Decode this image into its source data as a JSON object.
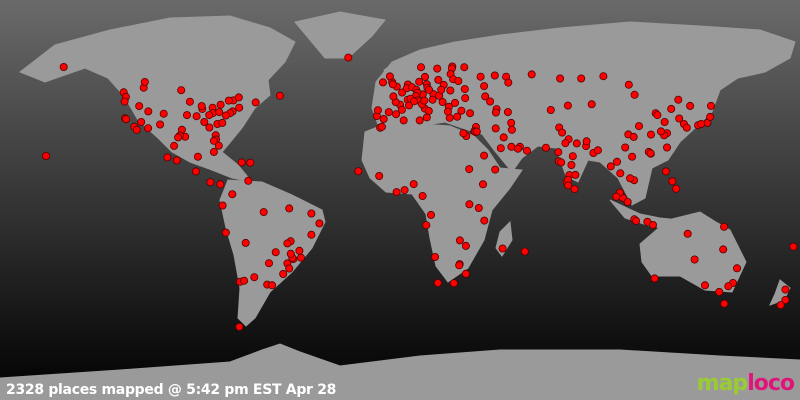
{
  "caption": "2328 places mapped @ 5:42 pm EST Apr 28",
  "logo": {
    "text_part1": "map",
    "text_part2": "loco",
    "color1": "#99cc33",
    "color2": "#e0157a"
  },
  "colors": {
    "land": "#9a9a9a",
    "marker": "#ff0000",
    "marker_outline": "#550000",
    "ocean_top": "#6a6a6a",
    "ocean_bottom": "#000000"
  },
  "markers": [
    [
      60,
      -150
    ],
    [
      49,
      -123
    ],
    [
      47,
      -122
    ],
    [
      45,
      -122.6
    ],
    [
      43,
      -116
    ],
    [
      40.7,
      -111.9
    ],
    [
      37.7,
      -122.4
    ],
    [
      37.3,
      -121.9
    ],
    [
      34,
      -118.2
    ],
    [
      32.7,
      -117.1
    ],
    [
      33.4,
      -112
    ],
    [
      36.1,
      -115.1
    ],
    [
      39.7,
      -105
    ],
    [
      35,
      -106.6
    ],
    [
      32.7,
      -96.8
    ],
    [
      29.7,
      -95.3
    ],
    [
      30.2,
      -97.7
    ],
    [
      29.4,
      -98.5
    ],
    [
      41.8,
      -87.6
    ],
    [
      42.3,
      -83
    ],
    [
      39.9,
      -82.9
    ],
    [
      39.1,
      -84.5
    ],
    [
      38.6,
      -90.2
    ],
    [
      39.1,
      -94.5
    ],
    [
      44.9,
      -93.2
    ],
    [
      43,
      -87.9
    ],
    [
      40.4,
      -80
    ],
    [
      40.7,
      -74
    ],
    [
      42.3,
      -71
    ],
    [
      39.9,
      -75.1
    ],
    [
      38.9,
      -77
    ],
    [
      35.2,
      -80.8
    ],
    [
      33.7,
      -84.4
    ],
    [
      35.7,
      -78.6
    ],
    [
      36.1,
      -86.7
    ],
    [
      30.3,
      -81.6
    ],
    [
      28.5,
      -81.4
    ],
    [
      25.8,
      -80.2
    ],
    [
      27.9,
      -82.4
    ],
    [
      43.6,
      -79.4
    ],
    [
      45.5,
      -73.6
    ],
    [
      46.8,
      -71.2
    ],
    [
      45.4,
      -75.7
    ],
    [
      51,
      -114
    ],
    [
      53.5,
      -113.5
    ],
    [
      49.9,
      -97.1
    ],
    [
      44.6,
      -63.6
    ],
    [
      47.5,
      -52.7
    ],
    [
      19.4,
      -99.1
    ],
    [
      20.7,
      -103.3
    ],
    [
      25.7,
      -100.3
    ],
    [
      21,
      -89.6
    ],
    [
      14.6,
      -90.5
    ],
    [
      9.9,
      -84
    ],
    [
      9,
      -79.5
    ],
    [
      18.5,
      -69.9
    ],
    [
      18.4,
      -66
    ],
    [
      23.1,
      -82.4
    ],
    [
      10.5,
      -66.9
    ],
    [
      4.7,
      -74.1
    ],
    [
      -0.2,
      -78.5
    ],
    [
      -12,
      -77
    ],
    [
      -16.5,
      -68.1
    ],
    [
      -33.4,
      -70.6
    ],
    [
      -34.6,
      -58.4
    ],
    [
      -31.4,
      -64.2
    ],
    [
      -32.9,
      -68.8
    ],
    [
      -34.9,
      -56.2
    ],
    [
      -25.3,
      -57.6
    ],
    [
      -23.5,
      -46.6
    ],
    [
      -22.9,
      -43.2
    ],
    [
      -19.9,
      -43.9
    ],
    [
      -25.4,
      -49.3
    ],
    [
      -30,
      -51.2
    ],
    [
      -27.6,
      -48.5
    ],
    [
      -15.8,
      -47.9
    ],
    [
      -16.7,
      -49.3
    ],
    [
      -12.9,
      -38.5
    ],
    [
      -8,
      -34.9
    ],
    [
      -3.7,
      -38.5
    ],
    [
      -1.5,
      -48.5
    ],
    [
      -3.1,
      -60
    ],
    [
      -20.5,
      -54.6
    ],
    [
      -22.9,
      -47.1
    ],
    [
      -21.2,
      -47.8
    ],
    [
      -53,
      -70.9
    ],
    [
      64.1,
      -21.9
    ],
    [
      51.5,
      -0.1
    ],
    [
      53.5,
      -2.2
    ],
    [
      55.9,
      -3.2
    ],
    [
      53.3,
      -6.3
    ],
    [
      52.5,
      -1.9
    ],
    [
      48.9,
      2.3
    ],
    [
      45.8,
      4.8
    ],
    [
      43.3,
      5.4
    ],
    [
      43.6,
      1.4
    ],
    [
      44.8,
      -0.6
    ],
    [
      47.2,
      -1.6
    ],
    [
      40.4,
      -3.7
    ],
    [
      41.4,
      2.2
    ],
    [
      39.5,
      -0.4
    ],
    [
      37.4,
      -6
    ],
    [
      38.7,
      -9.1
    ],
    [
      41.2,
      -8.6
    ],
    [
      52.4,
      4.9
    ],
    [
      50.8,
      4.4
    ],
    [
      51.2,
      6.8
    ],
    [
      50.1,
      8.7
    ],
    [
      48.1,
      11.6
    ],
    [
      52.5,
      13.4
    ],
    [
      53.6,
      10
    ],
    [
      51,
      13.7
    ],
    [
      48.8,
      9.2
    ],
    [
      47.4,
      8.5
    ],
    [
      46.2,
      6.1
    ],
    [
      45.5,
      9.2
    ],
    [
      45.1,
      7.7
    ],
    [
      41.9,
      12.5
    ],
    [
      40.9,
      14.3
    ],
    [
      43.8,
      11.3
    ],
    [
      45.4,
      12.3
    ],
    [
      38.1,
      13.4
    ],
    [
      48.2,
      16.4
    ],
    [
      50.1,
      14.4
    ],
    [
      47.5,
      19
    ],
    [
      52.2,
      21
    ],
    [
      50.1,
      19.9
    ],
    [
      54.4,
      18.6
    ],
    [
      44.4,
      26.1
    ],
    [
      42.7,
      23.3
    ],
    [
      44.8,
      20.5
    ],
    [
      45.8,
      16
    ],
    [
      37.9,
      23.7
    ],
    [
      40.6,
      22.9
    ],
    [
      41,
      29
    ],
    [
      39.9,
      32.9
    ],
    [
      38.4,
      27.1
    ],
    [
      55.7,
      12.6
    ],
    [
      59.3,
      18.1
    ],
    [
      59.9,
      10.8
    ],
    [
      60.2,
      24.9
    ],
    [
      59.4,
      24.7
    ],
    [
      56.9,
      24.1
    ],
    [
      54.7,
      25.3
    ],
    [
      53.9,
      27.6
    ],
    [
      50.4,
      30.5
    ],
    [
      49.8,
      24
    ],
    [
      46.5,
      30.7
    ],
    [
      55.8,
      37.6
    ],
    [
      59.9,
      30.3
    ],
    [
      56.3,
      44
    ],
    [
      55.8,
      49.1
    ],
    [
      53.2,
      50.1
    ],
    [
      51.7,
      39.2
    ],
    [
      47.2,
      39.7
    ],
    [
      45,
      41.9
    ],
    [
      56.8,
      60.6
    ],
    [
      55,
      73.4
    ],
    [
      55,
      82.9
    ],
    [
      56,
      92.9
    ],
    [
      52.3,
      104.3
    ],
    [
      43.2,
      76.9
    ],
    [
      41.3,
      69.2
    ],
    [
      40.4,
      49.9
    ],
    [
      41.7,
      44.8
    ],
    [
      40.2,
      44.5
    ],
    [
      35.7,
      51.4
    ],
    [
      32.7,
      51.7
    ],
    [
      33.3,
      44.4
    ],
    [
      33.9,
      35.5
    ],
    [
      32.1,
      34.8
    ],
    [
      31.8,
      35.2
    ],
    [
      31.9,
      35.9
    ],
    [
      30,
      31.2
    ],
    [
      31.2,
      29.9
    ],
    [
      24.7,
      46.7
    ],
    [
      21.5,
      39.2
    ],
    [
      25.3,
      55.3
    ],
    [
      24.5,
      54.4
    ],
    [
      25.3,
      51.5
    ],
    [
      29.4,
      48
    ],
    [
      23.6,
      58.5
    ],
    [
      15.4,
      44.2
    ],
    [
      33.7,
      73
    ],
    [
      31.5,
      74.3
    ],
    [
      24.9,
      67
    ],
    [
      28.6,
      77.2
    ],
    [
      26.9,
      75.8
    ],
    [
      26.8,
      80.9
    ],
    [
      22.6,
      88.4
    ],
    [
      19,
      72.8
    ],
    [
      18.5,
      73.9
    ],
    [
      23,
      72.6
    ],
    [
      17.4,
      78.5
    ],
    [
      13,
      77.6
    ],
    [
      13.1,
      80.3
    ],
    [
      10,
      76.3
    ],
    [
      11,
      77
    ],
    [
      8.5,
      77
    ],
    [
      21.2,
      79.1
    ],
    [
      25.6,
      85.1
    ],
    [
      27.7,
      85.3
    ],
    [
      23.8,
      90.4
    ],
    [
      6.9,
      79.9
    ],
    [
      16.8,
      96.2
    ],
    [
      13.8,
      100.5
    ],
    [
      18.8,
      99
    ],
    [
      21,
      105.8
    ],
    [
      10.8,
      106.7
    ],
    [
      11.6,
      104.9
    ],
    [
      3.1,
      101.7
    ],
    [
      1.3,
      103.8
    ],
    [
      5.4,
      100.3
    ],
    [
      -6.2,
      106.8
    ],
    [
      -6.9,
      107.6
    ],
    [
      -7.3,
      112.7
    ],
    [
      -8.7,
      115.2
    ],
    [
      3.6,
      98.7
    ],
    [
      14.6,
      121
    ],
    [
      10.3,
      123.9
    ],
    [
      7.1,
      125.6
    ],
    [
      22.3,
      114.2
    ],
    [
      23.1,
      113.3
    ],
    [
      22.5,
      114.1
    ],
    [
      25,
      121.5
    ],
    [
      31.2,
      121.5
    ],
    [
      30.3,
      120.2
    ],
    [
      32,
      118.8
    ],
    [
      39.9,
      116.4
    ],
    [
      39.1,
      117.2
    ],
    [
      36.1,
      120.4
    ],
    [
      30.6,
      114.3
    ],
    [
      30.7,
      104.1
    ],
    [
      29.6,
      106.5
    ],
    [
      34.3,
      108.9
    ],
    [
      25,
      102.7
    ],
    [
      41.8,
      123.4
    ],
    [
      45.8,
      126.6
    ],
    [
      43.8,
      87.6
    ],
    [
      47.9,
      106.9
    ],
    [
      37.6,
      127
    ],
    [
      35.2,
      129.1
    ],
    [
      35.7,
      139.7
    ],
    [
      34.7,
      135.5
    ],
    [
      35.2,
      136.9
    ],
    [
      43.1,
      141.3
    ],
    [
      33.6,
      130.4
    ],
    [
      38.3,
      140.9
    ],
    [
      43.1,
      131.9
    ],
    [
      36.8,
      3
    ],
    [
      33.6,
      -7.6
    ],
    [
      34,
      -6.8
    ],
    [
      36.8,
      10.2
    ],
    [
      14.7,
      -17.4
    ],
    [
      12.6,
      -8
    ],
    [
      5.6,
      -0.2
    ],
    [
      6.5,
      3.4
    ],
    [
      9.1,
      7.5
    ],
    [
      3.9,
      11.5
    ],
    [
      9,
      38.7
    ],
    [
      15.6,
      32.5
    ],
    [
      -1.3,
      36.8
    ],
    [
      -6.8,
      39.3
    ],
    [
      0.3,
      32.6
    ],
    [
      -4.3,
      15.3
    ],
    [
      -8.8,
      13.2
    ],
    [
      -15.4,
      28.3
    ],
    [
      -17.8,
      31
    ],
    [
      -18.9,
      47.5
    ],
    [
      -20.2,
      57.5
    ],
    [
      -25.7,
      28.2
    ],
    [
      -26.2,
      28
    ],
    [
      -29.9,
      31
    ],
    [
      -33.9,
      18.4
    ],
    [
      -34,
      25.6
    ],
    [
      -22.6,
      17.1
    ],
    [
      -31.9,
      115.9
    ],
    [
      -34.9,
      138.6
    ],
    [
      -37.8,
      145
    ],
    [
      -33.9,
      151.2
    ],
    [
      -27.5,
      153
    ],
    [
      -35.3,
      149.1
    ],
    [
      -23.7,
      133.9
    ],
    [
      -19.3,
      146.8
    ],
    [
      -12.5,
      130.8
    ],
    [
      -42.9,
      147.3
    ],
    [
      -36.8,
      174.8
    ],
    [
      -41.3,
      174.8
    ],
    [
      -43.5,
      172.6
    ],
    [
      -9.5,
      147.2
    ],
    [
      -18.1,
      178.4
    ],
    [
      21.3,
      -157.9
    ]
  ]
}
